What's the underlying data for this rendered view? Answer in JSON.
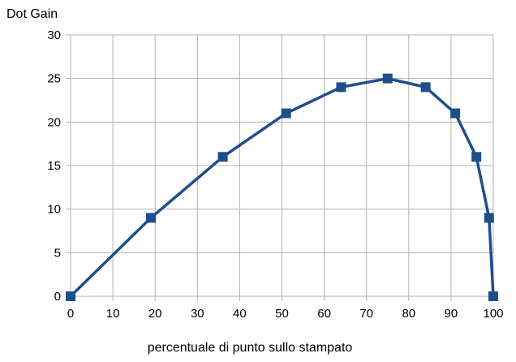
{
  "chart_data": {
    "type": "line",
    "title": "",
    "xlabel": "percentuale di punto sullo stampato",
    "ylabel": "Dot Gain",
    "xlim": [
      0,
      100
    ],
    "ylim": [
      0,
      30
    ],
    "x_ticks": [
      0,
      10,
      20,
      30,
      40,
      50,
      60,
      70,
      80,
      90,
      100
    ],
    "y_ticks": [
      0,
      5,
      10,
      15,
      20,
      25,
      30
    ],
    "grid": true,
    "legend": "none",
    "marker": "square",
    "series": [
      {
        "color": "#1f4e8c",
        "points": [
          {
            "x": 0,
            "y": 0
          },
          {
            "x": 19,
            "y": 9
          },
          {
            "x": 36,
            "y": 16
          },
          {
            "x": 51,
            "y": 21
          },
          {
            "x": 64,
            "y": 24
          },
          {
            "x": 75,
            "y": 25
          },
          {
            "x": 84,
            "y": 24
          },
          {
            "x": 91,
            "y": 21
          },
          {
            "x": 96,
            "y": 16
          },
          {
            "x": 99,
            "y": 9
          },
          {
            "x": 100,
            "y": 0
          }
        ]
      }
    ]
  },
  "colors": {
    "grid": "#b3b3b3",
    "background": "#ffffff"
  }
}
